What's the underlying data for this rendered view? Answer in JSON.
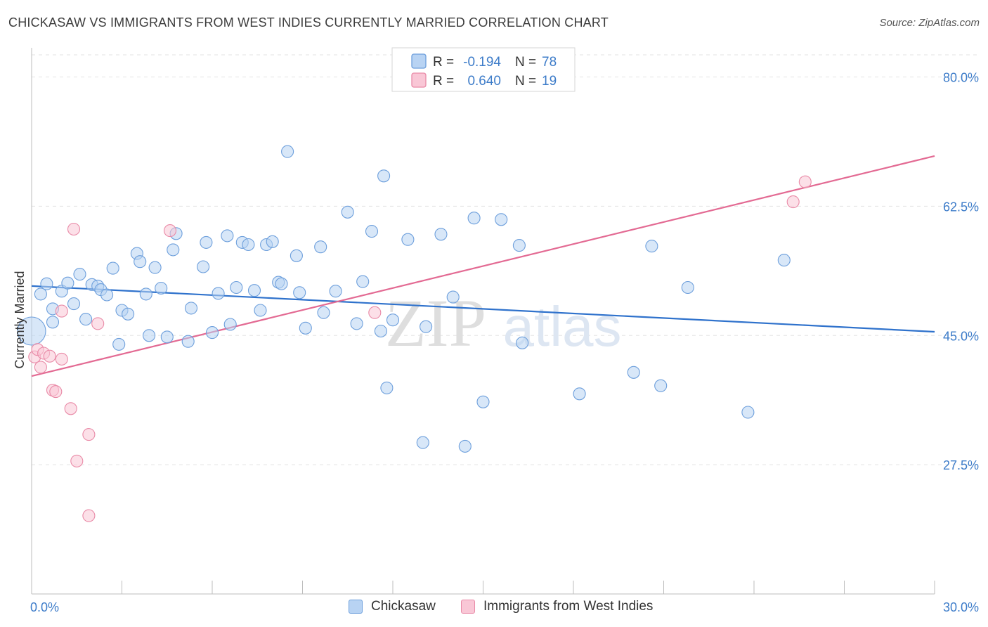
{
  "header": {
    "title": "CHICKASAW VS IMMIGRANTS FROM WEST INDIES CURRENTLY MARRIED CORRELATION CHART",
    "source": "Source: ZipAtlas.com"
  },
  "watermark": {
    "zip": "ZIP",
    "atlas": "atlas"
  },
  "colors": {
    "blue_fill": "#b8d3f3",
    "blue_stroke": "#6d9fdc",
    "blue_line": "#2f72cc",
    "pink_fill": "#f9c7d6",
    "pink_stroke": "#e98aa7",
    "pink_line": "#e36a93",
    "axis_text": "#3d7cc9",
    "grid": "#e3e3e3"
  },
  "chart_data": {
    "type": "scatter",
    "title": "CHICKASAW VS IMMIGRANTS FROM WEST INDIES CURRENTLY MARRIED CORRELATION CHART",
    "xlabel": "",
    "ylabel": "Currently Married",
    "xlim": [
      0,
      30
    ],
    "ylim": [
      10,
      83
    ],
    "x_tick_labels": [
      "0.0%",
      "30.0%"
    ],
    "y_ticks": [
      27.5,
      45.0,
      62.5,
      80.0
    ],
    "y_tick_labels": [
      "27.5%",
      "45.0%",
      "62.5%",
      "80.0%"
    ],
    "grid": true,
    "legend_position": "top-center",
    "legend": [
      {
        "swatch": "blue",
        "r_label": "R =",
        "r_value": "-0.194",
        "n_label": "N =",
        "n_value": "78"
      },
      {
        "swatch": "pink",
        "r_label": "R =",
        "r_value": "0.640",
        "n_label": "N =",
        "n_value": "19"
      }
    ],
    "series": [
      {
        "name": "Chickasaw",
        "color": "blue",
        "r": -0.194,
        "n": 78,
        "trend": {
          "x": [
            0,
            30
          ],
          "y": [
            51.7,
            45.5
          ]
        },
        "points": [
          [
            0.0,
            45.6,
            "large"
          ],
          [
            0.3,
            50.6
          ],
          [
            0.5,
            52.0
          ],
          [
            0.7,
            48.6
          ],
          [
            0.7,
            46.8
          ],
          [
            1.0,
            51.0
          ],
          [
            1.2,
            52.1
          ],
          [
            1.4,
            49.3
          ],
          [
            1.6,
            53.3
          ],
          [
            1.8,
            47.2
          ],
          [
            2.0,
            51.9
          ],
          [
            2.2,
            51.7
          ],
          [
            2.3,
            51.2
          ],
          [
            2.5,
            50.5
          ],
          [
            2.7,
            54.1
          ],
          [
            2.9,
            43.8
          ],
          [
            3.0,
            48.4
          ],
          [
            3.2,
            47.9
          ],
          [
            3.5,
            56.1
          ],
          [
            3.6,
            55.0
          ],
          [
            3.8,
            50.6
          ],
          [
            3.9,
            45.0
          ],
          [
            4.1,
            54.2
          ],
          [
            4.3,
            51.4
          ],
          [
            4.5,
            44.8
          ],
          [
            4.7,
            56.6
          ],
          [
            4.8,
            58.8
          ],
          [
            5.2,
            44.2
          ],
          [
            5.3,
            48.7
          ],
          [
            5.7,
            54.3
          ],
          [
            5.8,
            57.6
          ],
          [
            6.0,
            45.4
          ],
          [
            6.2,
            50.7
          ],
          [
            6.5,
            58.5
          ],
          [
            6.6,
            46.5
          ],
          [
            6.8,
            51.5
          ],
          [
            7.0,
            57.6
          ],
          [
            7.2,
            57.3
          ],
          [
            7.4,
            51.1
          ],
          [
            7.6,
            48.4
          ],
          [
            7.8,
            57.3
          ],
          [
            8.0,
            57.7
          ],
          [
            8.2,
            52.2
          ],
          [
            8.3,
            52.0
          ],
          [
            8.5,
            69.9
          ],
          [
            8.8,
            55.8
          ],
          [
            8.9,
            50.8
          ],
          [
            9.1,
            46.0
          ],
          [
            9.6,
            57.0
          ],
          [
            9.7,
            48.1
          ],
          [
            10.1,
            51.0
          ],
          [
            10.5,
            61.7
          ],
          [
            10.8,
            46.6
          ],
          [
            11.0,
            52.3
          ],
          [
            11.3,
            59.1
          ],
          [
            11.6,
            45.6
          ],
          [
            11.7,
            66.6
          ],
          [
            11.8,
            37.9
          ],
          [
            12.0,
            47.1
          ],
          [
            12.5,
            58.0
          ],
          [
            13.0,
            30.5
          ],
          [
            13.1,
            46.2
          ],
          [
            13.6,
            58.7
          ],
          [
            14.0,
            50.2
          ],
          [
            14.4,
            30.0
          ],
          [
            14.7,
            60.9
          ],
          [
            15.0,
            36.0
          ],
          [
            15.6,
            60.7
          ],
          [
            16.2,
            57.2
          ],
          [
            16.3,
            44.0
          ],
          [
            18.2,
            37.1
          ],
          [
            20.0,
            40.0
          ],
          [
            20.6,
            57.1
          ],
          [
            20.9,
            38.2
          ],
          [
            21.8,
            51.5
          ],
          [
            23.8,
            34.6
          ],
          [
            25.0,
            55.2
          ]
        ]
      },
      {
        "name": "Immigrants from West Indies",
        "color": "pink",
        "r": 0.64,
        "n": 19,
        "trend": {
          "x": [
            0,
            30
          ],
          "y": [
            39.5,
            69.3
          ]
        },
        "points": [
          [
            0.1,
            42.1
          ],
          [
            0.2,
            43.1
          ],
          [
            0.3,
            40.7
          ],
          [
            0.4,
            42.6
          ],
          [
            0.6,
            42.2
          ],
          [
            0.7,
            37.6
          ],
          [
            0.8,
            37.4
          ],
          [
            1.0,
            41.8
          ],
          [
            1.0,
            48.3
          ],
          [
            1.3,
            35.1
          ],
          [
            1.4,
            59.4
          ],
          [
            1.5,
            28.0
          ],
          [
            1.9,
            31.6
          ],
          [
            1.9,
            20.6
          ],
          [
            2.2,
            46.6
          ],
          [
            4.6,
            59.2
          ],
          [
            11.4,
            48.1
          ],
          [
            25.3,
            63.1
          ],
          [
            25.7,
            65.8
          ]
        ]
      }
    ]
  },
  "bottom_legend": {
    "items": [
      {
        "label": "Chickasaw",
        "swatch": "blue"
      },
      {
        "label": "Immigrants from West Indies",
        "swatch": "pink"
      }
    ]
  }
}
